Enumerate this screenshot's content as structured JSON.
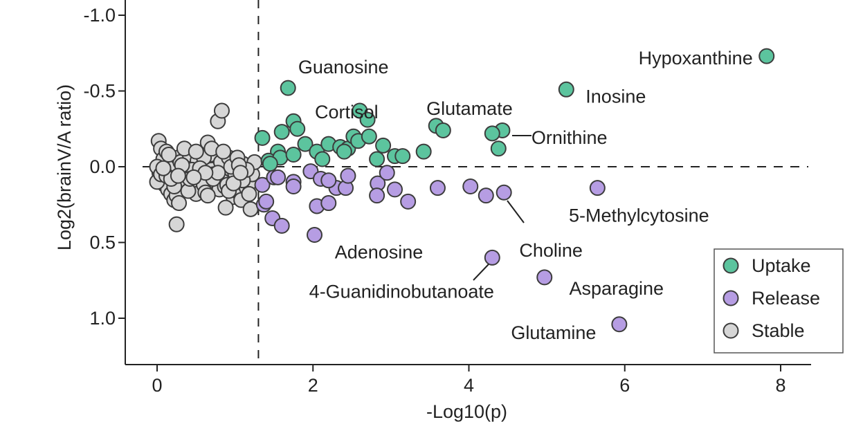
{
  "chart_data": {
    "type": "scatter",
    "title": "",
    "xlabel": "-Log10(p)",
    "ylabel": "Log2(brainV/A ratio)",
    "xlim": [
      -0.4,
      8.4
    ],
    "ylim": [
      -1.1,
      1.3
    ],
    "y_inverted": true,
    "x_ticks": [
      0,
      2,
      4,
      6,
      8
    ],
    "y_ticks": [
      -1.0,
      -0.5,
      0.0,
      0.5,
      1.0
    ],
    "y_tick_labels": [
      "-1.0",
      "-0.5",
      "0.0",
      "0.5",
      "1.0"
    ],
    "threshold_x": 1.3,
    "threshold_y": 0.0,
    "grid": false,
    "legend_position": "bottom-right",
    "series": [
      {
        "name": "Uptake",
        "color": "#5cc49e",
        "points": [
          [
            7.82,
            -0.73
          ],
          [
            5.25,
            -0.51
          ],
          [
            4.43,
            -0.24
          ],
          [
            4.3,
            -0.22
          ],
          [
            4.38,
            -0.12
          ],
          [
            1.68,
            -0.52
          ],
          [
            2.6,
            -0.37
          ],
          [
            2.7,
            -0.31
          ],
          [
            3.58,
            -0.27
          ],
          [
            3.67,
            -0.24
          ],
          [
            1.35,
            -0.19
          ],
          [
            1.6,
            -0.23
          ],
          [
            1.75,
            -0.3
          ],
          [
            1.8,
            -0.25
          ],
          [
            1.55,
            -0.1
          ],
          [
            1.9,
            -0.15
          ],
          [
            2.05,
            -0.1
          ],
          [
            2.2,
            -0.15
          ],
          [
            2.35,
            -0.13
          ],
          [
            2.45,
            -0.12
          ],
          [
            2.52,
            -0.2
          ],
          [
            2.58,
            -0.17
          ],
          [
            2.72,
            -0.2
          ],
          [
            2.9,
            -0.14
          ],
          [
            2.82,
            -0.05
          ],
          [
            3.05,
            -0.07
          ],
          [
            3.15,
            -0.07
          ],
          [
            3.42,
            -0.1
          ],
          [
            1.43,
            -0.04
          ],
          [
            1.58,
            -0.06
          ],
          [
            1.75,
            -0.08
          ],
          [
            2.12,
            -0.05
          ],
          [
            2.4,
            -0.1
          ],
          [
            1.45,
            -0.02
          ]
        ]
      },
      {
        "name": "Release",
        "color": "#b69de3",
        "points": [
          [
            5.93,
            1.04
          ],
          [
            4.97,
            0.73
          ],
          [
            4.3,
            0.6
          ],
          [
            5.65,
            0.14
          ],
          [
            4.45,
            0.17
          ],
          [
            4.22,
            0.19
          ],
          [
            4.02,
            0.13
          ],
          [
            3.6,
            0.14
          ],
          [
            2.02,
            0.45
          ],
          [
            1.35,
            0.12
          ],
          [
            1.37,
            0.25
          ],
          [
            1.4,
            0.23
          ],
          [
            1.48,
            0.34
          ],
          [
            1.6,
            0.39
          ],
          [
            1.5,
            0.07
          ],
          [
            1.55,
            0.07
          ],
          [
            1.75,
            0.1
          ],
          [
            1.75,
            0.13
          ],
          [
            1.97,
            0.03
          ],
          [
            2.05,
            0.26
          ],
          [
            2.2,
            0.24
          ],
          [
            2.3,
            0.14
          ],
          [
            2.42,
            0.14
          ],
          [
            2.45,
            0.06
          ],
          [
            2.83,
            0.11
          ],
          [
            2.82,
            0.19
          ],
          [
            2.95,
            0.04
          ],
          [
            3.05,
            0.15
          ],
          [
            3.22,
            0.23
          ],
          [
            2.1,
            0.08
          ],
          [
            2.2,
            0.09
          ]
        ]
      },
      {
        "name": "Stable",
        "color": "#d6d6d6",
        "points": [
          [
            0.02,
            -0.17
          ],
          [
            0.05,
            -0.12
          ],
          [
            0.08,
            -0.05
          ],
          [
            0.12,
            -0.1
          ],
          [
            0.15,
            0.02
          ],
          [
            0.03,
            0.04
          ],
          [
            0.07,
            0.08
          ],
          [
            0.1,
            0.12
          ],
          [
            0.14,
            0.15
          ],
          [
            0.18,
            0.18
          ],
          [
            0.22,
            0.22
          ],
          [
            0.25,
            0.19
          ],
          [
            0.28,
            0.24
          ],
          [
            0.25,
            0.38
          ],
          [
            0.2,
            -0.02
          ],
          [
            0.27,
            -0.06
          ],
          [
            0.3,
            -0.03
          ],
          [
            0.33,
            0.02
          ],
          [
            0.36,
            0.06
          ],
          [
            0.4,
            0.1
          ],
          [
            0.42,
            -0.08
          ],
          [
            0.45,
            0.03
          ],
          [
            0.48,
            0.14
          ],
          [
            0.5,
            0.18
          ],
          [
            0.52,
            -0.04
          ],
          [
            0.55,
            0.05
          ],
          [
            0.58,
            0.08
          ],
          [
            0.6,
            0.12
          ],
          [
            0.62,
            0.17
          ],
          [
            0.65,
            -0.16
          ],
          [
            0.68,
            -0.08
          ],
          [
            0.7,
            0.02
          ],
          [
            0.72,
            0.05
          ],
          [
            0.75,
            0.1
          ],
          [
            0.78,
            -0.3
          ],
          [
            0.8,
            0.15
          ],
          [
            0.83,
            -0.37
          ],
          [
            0.82,
            -0.03
          ],
          [
            0.85,
            0.07
          ],
          [
            0.87,
            0.13
          ],
          [
            0.9,
            0.12
          ],
          [
            0.92,
            -0.06
          ],
          [
            0.95,
            0.02
          ],
          [
            0.98,
            0.2
          ],
          [
            1.0,
            0.04
          ],
          [
            1.02,
            0.16
          ],
          [
            1.05,
            0.1
          ],
          [
            1.08,
            0.22
          ],
          [
            1.1,
            -0.02
          ],
          [
            1.12,
            0.06
          ],
          [
            1.15,
            0.14
          ],
          [
            1.18,
            0.11
          ],
          [
            1.2,
            0.28
          ],
          [
            1.22,
            0.05
          ],
          [
            1.25,
            -0.03
          ],
          [
            0.0,
            0.0
          ],
          [
            0.0,
            0.1
          ],
          [
            0.05,
            0.05
          ],
          [
            0.15,
            -0.08
          ],
          [
            0.35,
            -0.12
          ],
          [
            0.45,
            0.02
          ],
          [
            0.6,
            -0.06
          ],
          [
            0.65,
            0.19
          ],
          [
            0.72,
            0.08
          ],
          [
            0.88,
            0.27
          ],
          [
            0.95,
            0.0
          ],
          [
            1.03,
            -0.06
          ],
          [
            1.1,
            0.09
          ],
          [
            1.18,
            0.18
          ],
          [
            0.3,
            0.1
          ],
          [
            0.4,
            0.16
          ],
          [
            0.55,
            0.01
          ],
          [
            0.78,
            0.04
          ],
          [
            0.92,
            0.16
          ],
          [
            1.15,
            0.02
          ],
          [
            0.12,
            0.06
          ],
          [
            0.22,
            0.13
          ],
          [
            0.5,
            -0.1
          ],
          [
            0.7,
            -0.12
          ],
          [
            0.85,
            -0.1
          ],
          [
            0.32,
            -0.01
          ],
          [
            0.62,
            0.04
          ],
          [
            1.05,
            -0.01
          ],
          [
            0.18,
            0.08
          ],
          [
            0.42,
            0.08
          ],
          [
            0.98,
            0.11
          ],
          [
            0.08,
            0.01
          ],
          [
            0.27,
            0.06
          ],
          [
            0.47,
            0.07
          ],
          [
            1.07,
            0.04
          ]
        ]
      }
    ],
    "annotations": [
      {
        "text": "Hypoxanthine",
        "x": 7.82,
        "y": -0.73
      },
      {
        "text": "Inosine",
        "x": 5.25,
        "y": -0.51
      },
      {
        "text": "Ornithine",
        "x": 4.43,
        "y": -0.2
      },
      {
        "text": "Glutamate",
        "x": 3.6,
        "y": -0.27
      },
      {
        "text": "Guanosine",
        "x": 1.68,
        "y": -0.52
      },
      {
        "text": "Cortisol",
        "x": 2.6,
        "y": -0.37
      },
      {
        "text": "5-Methylcytosine",
        "x": 5.65,
        "y": 0.14
      },
      {
        "text": "Choline",
        "x": 4.45,
        "y": 0.17
      },
      {
        "text": "Adenosine",
        "x": 2.02,
        "y": 0.45
      },
      {
        "text": "4-Guanidinobutanoate",
        "x": 4.3,
        "y": 0.6
      },
      {
        "text": "Asparagine",
        "x": 4.97,
        "y": 0.73
      },
      {
        "text": "Glutamine",
        "x": 5.93,
        "y": 1.04
      }
    ]
  }
}
